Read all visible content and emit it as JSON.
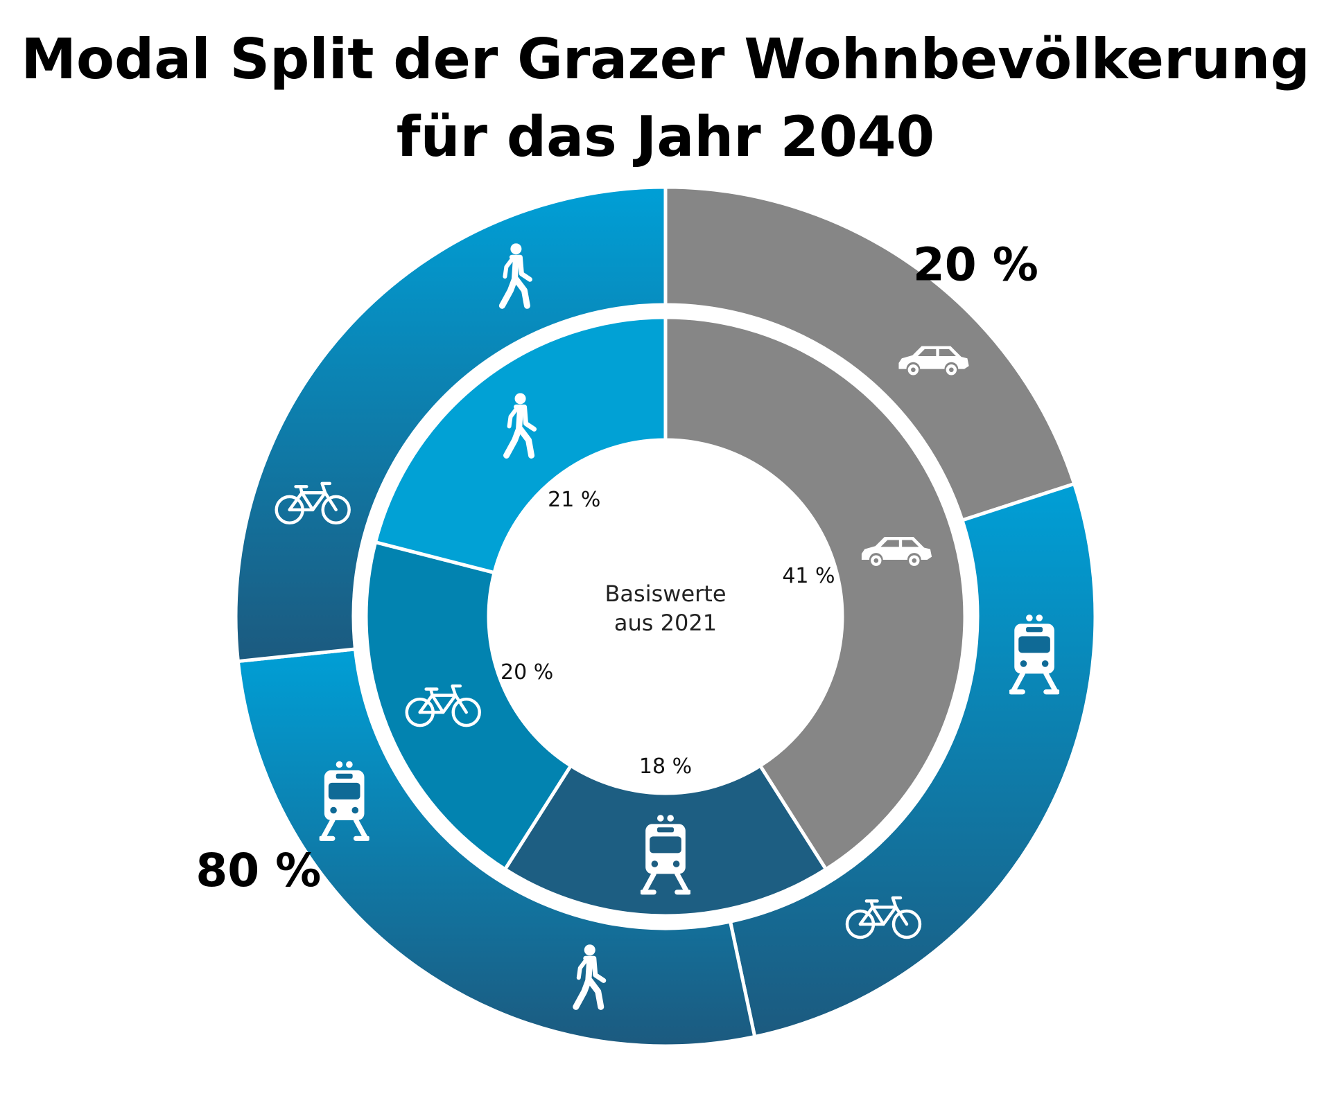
{
  "chart_data": {
    "type": "pie",
    "style": "nested donut",
    "title_lines": [
      "Modal Split der Grazer Wohnbevölkerung",
      "für das Jahr 2040"
    ],
    "center_label": [
      "Basiswerte",
      "aus 2021"
    ],
    "rings": [
      {
        "ring": "outer",
        "slices": [
          {
            "category": "car",
            "icon": "car-icon",
            "value": 20,
            "label": "20 %",
            "color": "#868686"
          },
          {
            "category": "public-transport",
            "icon": "tram-icon",
            "value": 26.67,
            "color": "#0f7aaa"
          },
          {
            "category": "bicycle",
            "icon": "bicycle-icon",
            "value": 26.67,
            "color": "#166690"
          },
          {
            "category": "walking",
            "icon": "pedestrian-icon",
            "value": 26.66,
            "color": "#0b82b5"
          }
        ],
        "group_labels": [
          {
            "group": "car",
            "value": 20,
            "label": "20 %"
          },
          {
            "group": "environmental-alliance",
            "value": 80,
            "label": "80 %"
          }
        ],
        "gradient": {
          "top": "#009fd6",
          "bottom": "#1c5a7f"
        }
      },
      {
        "ring": "inner",
        "slices": [
          {
            "category": "car",
            "icon": "car-icon",
            "value": 41,
            "label": "41 %",
            "color": "#868686"
          },
          {
            "category": "public-transport",
            "icon": "tram-icon",
            "value": 18,
            "label": "18 %",
            "color": "#1d5e82"
          },
          {
            "category": "bicycle",
            "icon": "bicycle-icon",
            "value": 20,
            "label": "20 %",
            "color": "#0283b0"
          },
          {
            "category": "walking",
            "icon": "pedestrian-icon",
            "value": 21,
            "label": "21 %",
            "color": "#01a1d5"
          }
        ]
      }
    ],
    "legend": "none"
  }
}
